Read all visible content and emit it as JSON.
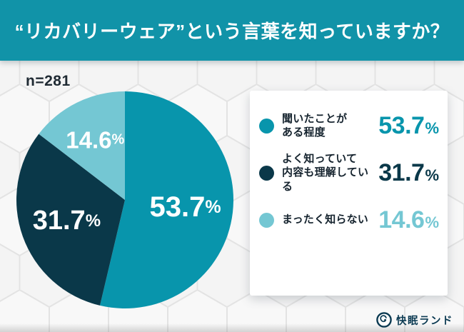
{
  "header": {
    "title": "“リカバリーウェア”という言葉を知っていますか？"
  },
  "chart_data": {
    "type": "pie",
    "title": "“リカバリーウェア”という言葉を知っていますか？",
    "sample_label": "n=281",
    "start": "top",
    "direction": "clockwise",
    "legend_position": "right",
    "slices": [
      {
        "label": "聞いたことがある程度",
        "value": 53.7,
        "color": "#0895ac",
        "label_color": "#ffffff"
      },
      {
        "label": "よく知っていて内容も理解している",
        "value": 31.7,
        "color": "#0a3849",
        "label_color": "#ffffff"
      },
      {
        "label": "まったく知らない",
        "value": 14.6,
        "color": "#74c7d3",
        "label_color": "#ffffff"
      }
    ]
  },
  "legend": {
    "items": [
      {
        "label_lines": [
          "聞いたことが",
          "ある程度"
        ],
        "value": "53.7",
        "unit": "%",
        "color": "#0895ac"
      },
      {
        "label_lines": [
          "よく知っていて",
          "内容も理解している"
        ],
        "value": "31.7",
        "unit": "%",
        "color": "#0a3849"
      },
      {
        "label_lines": [
          "まったく知らない"
        ],
        "value": "14.6",
        "unit": "%",
        "color": "#74c7d3"
      }
    ]
  },
  "footer": {
    "brand": "快眠ランド",
    "brand_color": "#0b3a52"
  }
}
